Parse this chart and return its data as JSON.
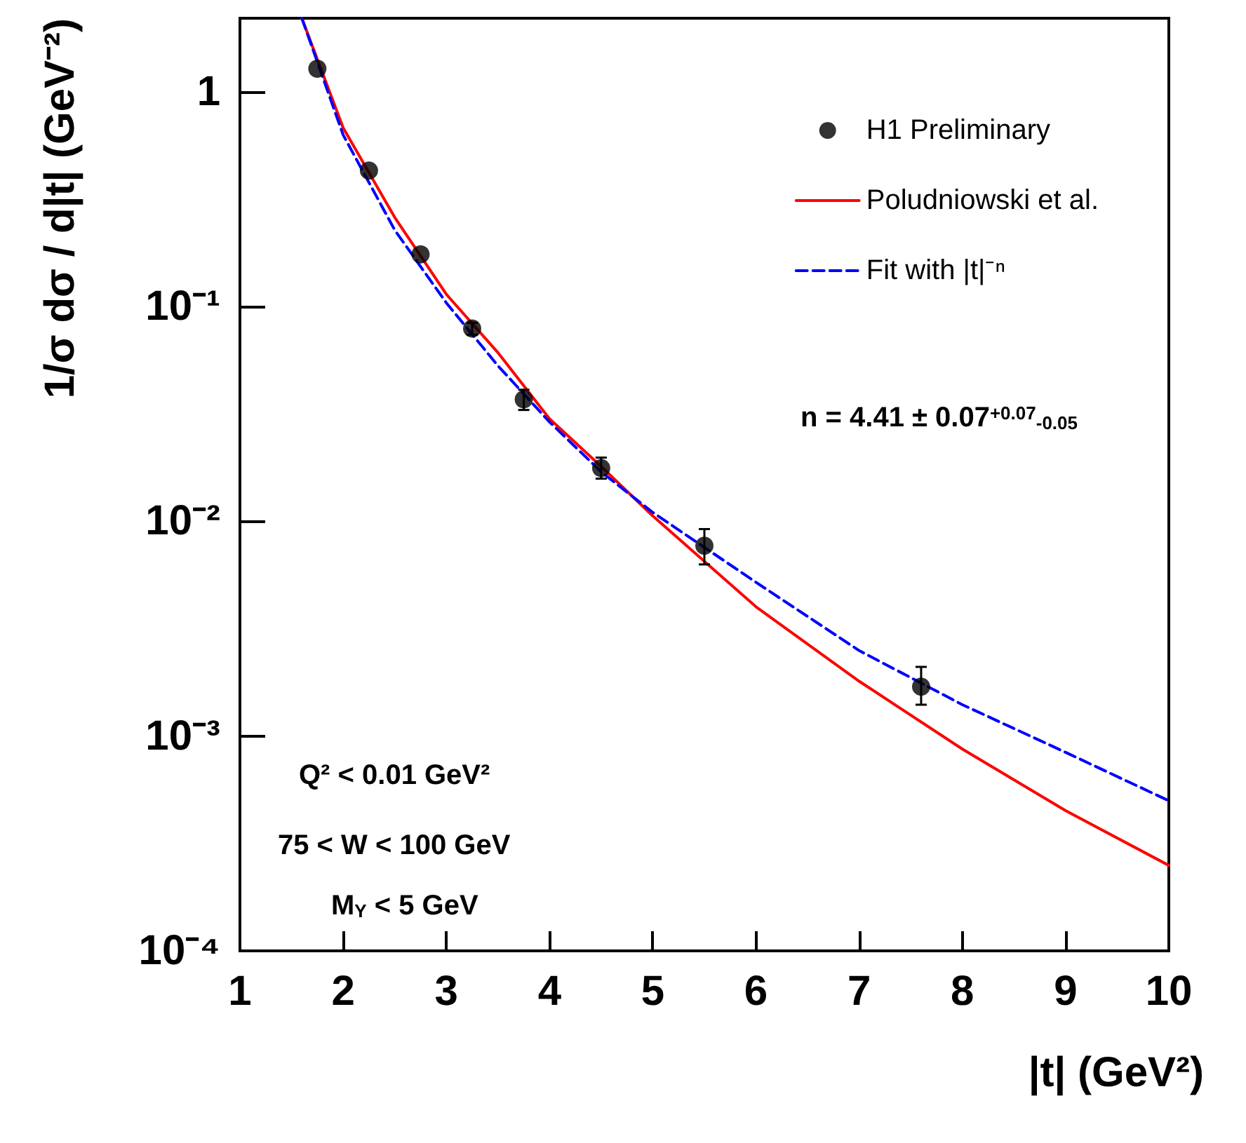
{
  "chart_data": {
    "type": "scatter",
    "xlabel": "|t| (GeV²)",
    "ylabel": "1/σ dσ / d|t| (GeV⁻²)",
    "log": "y",
    "grid": false,
    "legend": "top right",
    "xlim": [
      1,
      10
    ],
    "xticks": [
      1,
      2,
      3,
      4,
      5,
      6,
      7,
      8,
      9,
      10
    ],
    "ylim": [
      0.0001,
      2.2
    ],
    "yticks": [
      {
        "value": 0.0001,
        "label": "10⁻⁴"
      },
      {
        "value": 0.001,
        "label": "10⁻³"
      },
      {
        "value": 0.01,
        "label": "10⁻²"
      },
      {
        "value": 0.1,
        "label": "10⁻¹"
      },
      {
        "value": 1,
        "label": "1"
      }
    ],
    "series": [
      {
        "name": "H1 Preliminary",
        "marker": "circle",
        "color": "#000000",
        "x": [
          1.75,
          2.25,
          2.75,
          3.25,
          3.75,
          4.5,
          5.5,
          7.6
        ],
        "values": [
          1.28,
          0.43,
          0.175,
          0.079,
          0.037,
          0.0177,
          0.0077,
          0.0017
        ],
        "errors": [
          null,
          null,
          null,
          [
            0.074,
            0.084
          ],
          [
            0.033,
            0.041
          ],
          [
            0.0158,
            0.0198
          ],
          [
            0.0063,
            0.0092
          ],
          [
            0.0014,
            0.0021
          ]
        ]
      },
      {
        "name": "Poludniowski et al.",
        "type": "line",
        "marker": "none",
        "line_style": "solid",
        "color": "#ff0000",
        "x": [
          1.6,
          2.0,
          2.5,
          3.0,
          3.5,
          4.0,
          4.5,
          5.0,
          6.0,
          7.0,
          8.0,
          9.0,
          10.0
        ],
        "values": [
          2.2,
          0.68,
          0.26,
          0.114,
          0.061,
          0.03,
          0.018,
          0.0106,
          0.004,
          0.0018,
          0.00087,
          0.00045,
          0.00025
        ]
      },
      {
        "name": "Fit with |t|⁻ⁿ",
        "type": "line",
        "marker": "none",
        "line_style": "dashed",
        "color": "#0000ff",
        "x": [
          1.6,
          2.0,
          2.5,
          3.0,
          3.5,
          4.0,
          4.5,
          5.0,
          6.0,
          7.0,
          8.0,
          9.0,
          10.0
        ],
        "values": [
          2.2,
          0.63,
          0.227,
          0.104,
          0.053,
          0.029,
          0.017,
          0.011,
          0.0052,
          0.0025,
          0.0014,
          0.00084,
          0.0005
        ]
      }
    ],
    "annotations": [
      "n = 4.41 ± 0.07$^{+0.07}$$_{-0.05}$",
      "Q² < 0.01 GeV²",
      "75 < W < 100 GeV",
      "M$_{Y}$ < 5 GeV"
    ]
  }
}
